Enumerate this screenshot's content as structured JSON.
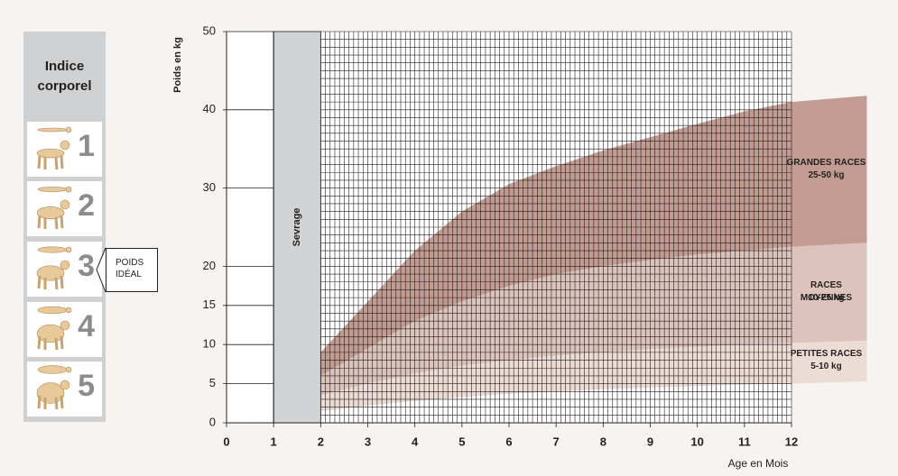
{
  "chart_data": {
    "type": "band",
    "y_label": "Poids en kg",
    "x_label": "Age en Mois",
    "xlim": [
      0,
      12
    ],
    "xticks": [
      0,
      1,
      2,
      3,
      4,
      5,
      6,
      7,
      8,
      9,
      10,
      11,
      12
    ],
    "ylim": [
      0,
      50
    ],
    "yticks": [
      0,
      5,
      10,
      15,
      20,
      30,
      40,
      50
    ],
    "minor_grid": {
      "x_step": 0.1,
      "y_step": 1
    },
    "shaded_region": {
      "x": [
        1,
        2
      ],
      "label": "Sevrage",
      "color": "#d1d3d4"
    },
    "x": [
      2,
      3,
      4,
      5,
      6,
      7,
      8,
      9,
      10,
      11,
      12,
      13.6
    ],
    "series": [
      {
        "name": "GRANDES RACES",
        "range": "25-50 kg",
        "color": "#c29c91",
        "high": [
          9,
          15.5,
          22,
          27,
          30.5,
          32.8,
          34.8,
          36.5,
          38.2,
          39.8,
          41,
          41.8
        ],
        "low": [
          6,
          9.5,
          13,
          15.5,
          17.5,
          19,
          20,
          20.8,
          21.5,
          22,
          22.5,
          23
        ]
      },
      {
        "name": "RACES MOYENNES",
        "range": "10-25 kg",
        "color": "#dcc4bc",
        "high": [
          6,
          9.5,
          13,
          15.5,
          17.5,
          19,
          20,
          20.8,
          21.5,
          22,
          22.5,
          23
        ],
        "low": [
          3.5,
          5,
          6.3,
          7.3,
          8,
          8.6,
          9,
          9.4,
          9.7,
          10,
          10.2,
          10.5
        ]
      },
      {
        "name": "PETITES RACES",
        "range": "5-10 kg",
        "color": "#ecdcd6",
        "high": [
          3.5,
          5,
          6.3,
          7.3,
          8,
          8.6,
          9,
          9.4,
          9.7,
          10,
          10.2,
          10.5
        ],
        "low": [
          1.5,
          2.2,
          2.8,
          3.3,
          3.7,
          4,
          4.3,
          4.5,
          4.7,
          4.9,
          5,
          5.3
        ]
      }
    ]
  },
  "body_index": {
    "title": "Indice corporel",
    "levels": [
      1,
      2,
      3,
      4,
      5
    ],
    "callout": "POIDS IDÉAL"
  }
}
